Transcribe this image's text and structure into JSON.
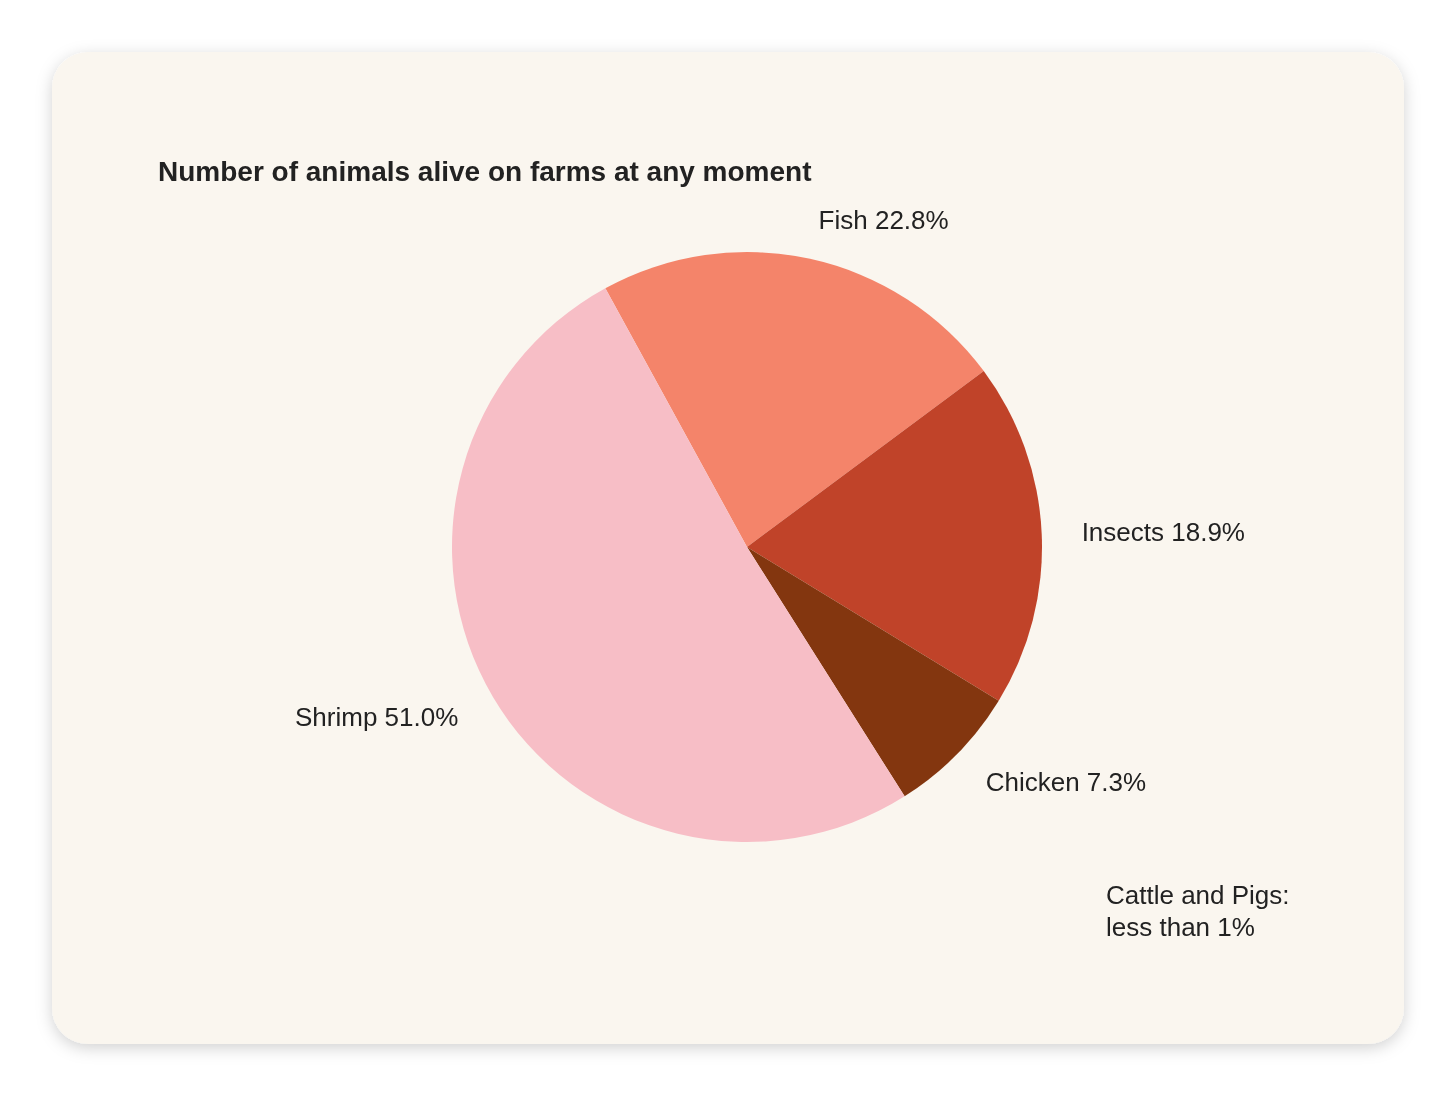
{
  "chart_data": {
    "type": "pie",
    "title": "Number of animals alive on farms at any moment",
    "categories": [
      "Fish",
      "Insects",
      "Chicken",
      "Shrimp"
    ],
    "values": [
      22.8,
      18.9,
      7.3,
      51.0
    ],
    "value_labels": [
      "22.8%",
      "18.9%",
      "7.3%",
      "51.0%"
    ],
    "colors": [
      "#f4846a",
      "#c04329",
      "#83360f",
      "#f7bec6"
    ],
    "annotations": [
      "Cattle and Pigs: less than 1%"
    ]
  }
}
